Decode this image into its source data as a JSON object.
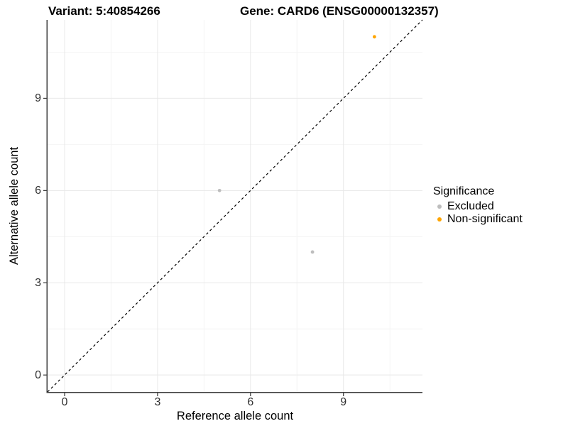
{
  "chart_data": {
    "type": "scatter",
    "title_variant": "Variant: 5:40854266",
    "title_gene": "Gene: CARD6 (ENSG00000132357)",
    "xlabel": "Reference allele count",
    "ylabel": "Alternative allele count",
    "xlim": [
      -0.55,
      11.55
    ],
    "ylim": [
      -0.55,
      11.55
    ],
    "x_ticks": [
      0,
      3,
      6,
      9
    ],
    "y_ticks": [
      0,
      3,
      6,
      9
    ],
    "x_minor_ticks": [
      1.5,
      4.5,
      7.5,
      10.5
    ],
    "y_minor_ticks": [
      1.5,
      4.5,
      7.5,
      10.5
    ],
    "grid": "major and minor gridlines, light gray on white panel",
    "reference_line": {
      "type": "identity y=x",
      "style": "dashed",
      "color": "#000000"
    },
    "legend": {
      "title": "Significance",
      "position": "right"
    },
    "series": [
      {
        "name": "Excluded",
        "color": "#BDBDBD",
        "points": [
          [
            5,
            6
          ],
          [
            8,
            4
          ]
        ]
      },
      {
        "name": "Non-significant",
        "color": "#FFA500",
        "points": [
          [
            10,
            11
          ]
        ]
      }
    ]
  },
  "style": {
    "grid_major_color": "#E8E8E8",
    "grid_minor_color": "#F4F4F4",
    "axis_line_color": "#3C3C3C",
    "tick_mark_color": "#333333",
    "tick_label_color": "#303030",
    "point_radius": 2.4,
    "background": "#FFFFFF"
  }
}
